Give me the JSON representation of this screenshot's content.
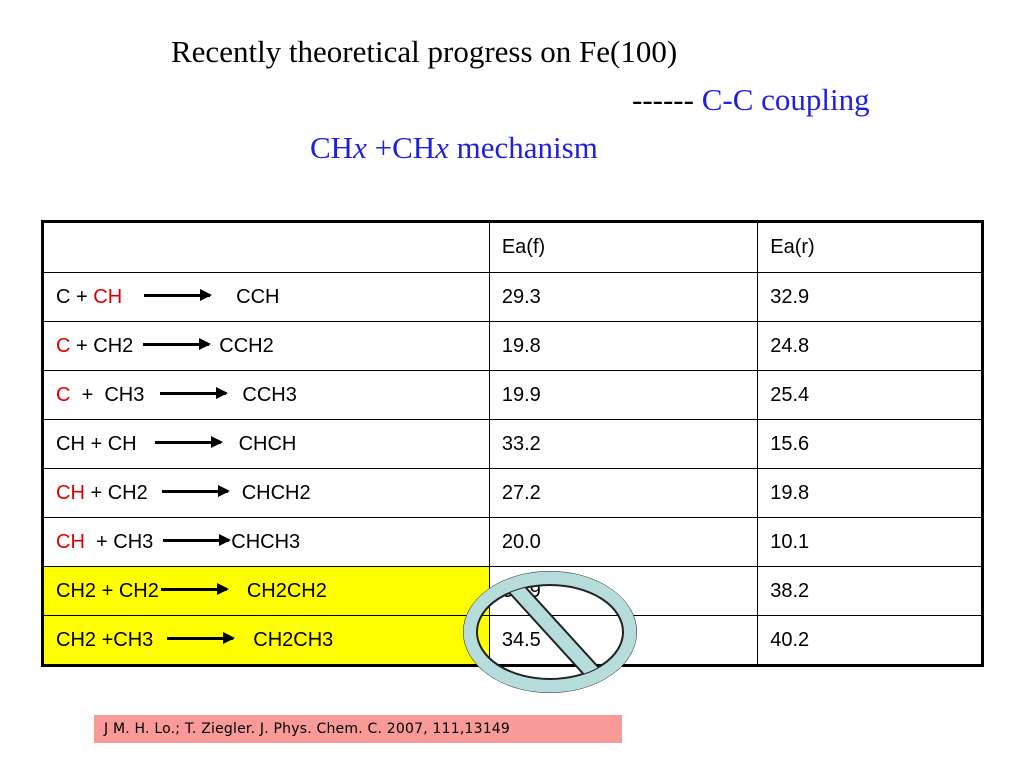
{
  "title": "Recently theoretical progress on Fe(100)",
  "subtitle": {
    "dashes": "------",
    "topic": "C-C coupling"
  },
  "mechanism": {
    "part1": "CH",
    "x1": "x",
    "part2": " +CH",
    "x2": "x",
    "part3": " mechanism"
  },
  "table": {
    "headers": [
      "",
      "Ea(f)",
      "Ea(r)"
    ],
    "rows": [
      {
        "reactant_a": "C",
        "plus": " + ",
        "reactant_b": "CH",
        "product": "CCH",
        "ea_f": "29.3",
        "ea_r": "32.9"
      },
      {
        "reactant_a": "C",
        "plus": " + ",
        "reactant_b": "CH2",
        "product": "CCH2",
        "ea_f": "19.8",
        "ea_r": "24.8"
      },
      {
        "reactant_a": "C",
        "plus": "  +  ",
        "reactant_b": "CH3",
        "product": "CCH3",
        "ea_f": "19.9",
        "ea_r": "25.4"
      },
      {
        "reactant_a": "CH",
        "plus": " + ",
        "reactant_b": "CH",
        "product": "CHCH",
        "ea_f": "33.2",
        "ea_r": "15.6"
      },
      {
        "reactant_a": "CH",
        "plus": " + ",
        "reactant_b": "CH2",
        "product": "CHCH2",
        "ea_f": "27.2",
        "ea_r": "19.8"
      },
      {
        "reactant_a": "CH",
        "plus": "  + ",
        "reactant_b": "CH3",
        "product": "CHCH3",
        "ea_f": "20.0",
        "ea_r": "10.1"
      },
      {
        "reactant_a": "CH2",
        "plus": " + ",
        "reactant_b": "CH2",
        "product": "CH2CH2",
        "ea_f": "34.9",
        "ea_r": "38.2"
      },
      {
        "reactant_a": "CH2",
        "plus": " +",
        "reactant_b": "CH3",
        "product": "CH2CH3",
        "ea_f": "34.5",
        "ea_r": "40.2"
      }
    ]
  },
  "citation": "J M. H. Lo.; T. Ziegler. J. Phys. Chem. C. 2007, 111,13149",
  "colors": {
    "red": "#e00000",
    "blue": "#1414d8",
    "highlight": "#ffff00",
    "citation_bg": "#f89a98",
    "no_sign_fill": "#b7dcdc"
  },
  "icons": {
    "prohibition": "no-entry-sign-icon",
    "reaction_arrow": "right-arrow-icon"
  }
}
